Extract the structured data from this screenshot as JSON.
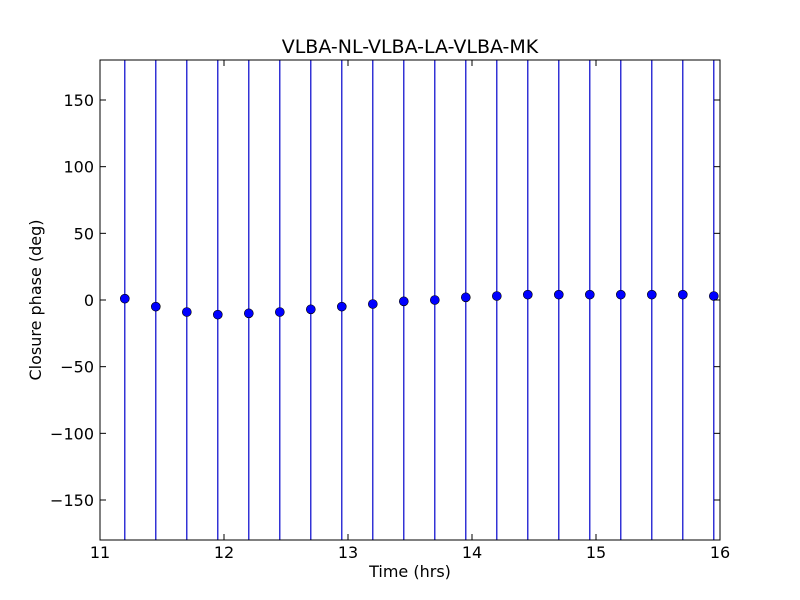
{
  "chart_data": {
    "type": "scatter",
    "title": "VLBA-NL-VLBA-LA-VLBA-MK",
    "xlabel": "Time (hrs)",
    "ylabel": "Closure phase (deg)",
    "xlim": [
      11,
      16
    ],
    "ylim": [
      -180,
      180
    ],
    "xticks": [
      11,
      12,
      13,
      14,
      15,
      16
    ],
    "yticks": [
      -150,
      -100,
      -50,
      0,
      50,
      100,
      150
    ],
    "xtick_labels": [
      "11",
      "12",
      "13",
      "14",
      "15",
      "16"
    ],
    "ytick_labels": [
      "−150",
      "−100",
      "−50",
      "0",
      "50",
      "100",
      "150"
    ],
    "grid": false,
    "marker_color": "#0000ff",
    "error_bar_color": "#0000cc",
    "error_bar_extent": "full",
    "points": [
      {
        "x": 11.2,
        "y": 1
      },
      {
        "x": 11.45,
        "y": -5
      },
      {
        "x": 11.7,
        "y": -9
      },
      {
        "x": 11.95,
        "y": -11
      },
      {
        "x": 12.2,
        "y": -10
      },
      {
        "x": 12.45,
        "y": -9
      },
      {
        "x": 12.7,
        "y": -7
      },
      {
        "x": 12.95,
        "y": -5
      },
      {
        "x": 13.2,
        "y": -3
      },
      {
        "x": 13.45,
        "y": -1
      },
      {
        "x": 13.7,
        "y": 0
      },
      {
        "x": 13.95,
        "y": 2
      },
      {
        "x": 14.2,
        "y": 3
      },
      {
        "x": 14.45,
        "y": 4
      },
      {
        "x": 14.7,
        "y": 4
      },
      {
        "x": 14.95,
        "y": 4
      },
      {
        "x": 15.2,
        "y": 4
      },
      {
        "x": 15.45,
        "y": 4
      },
      {
        "x": 15.7,
        "y": 4
      },
      {
        "x": 15.95,
        "y": 3
      }
    ]
  }
}
